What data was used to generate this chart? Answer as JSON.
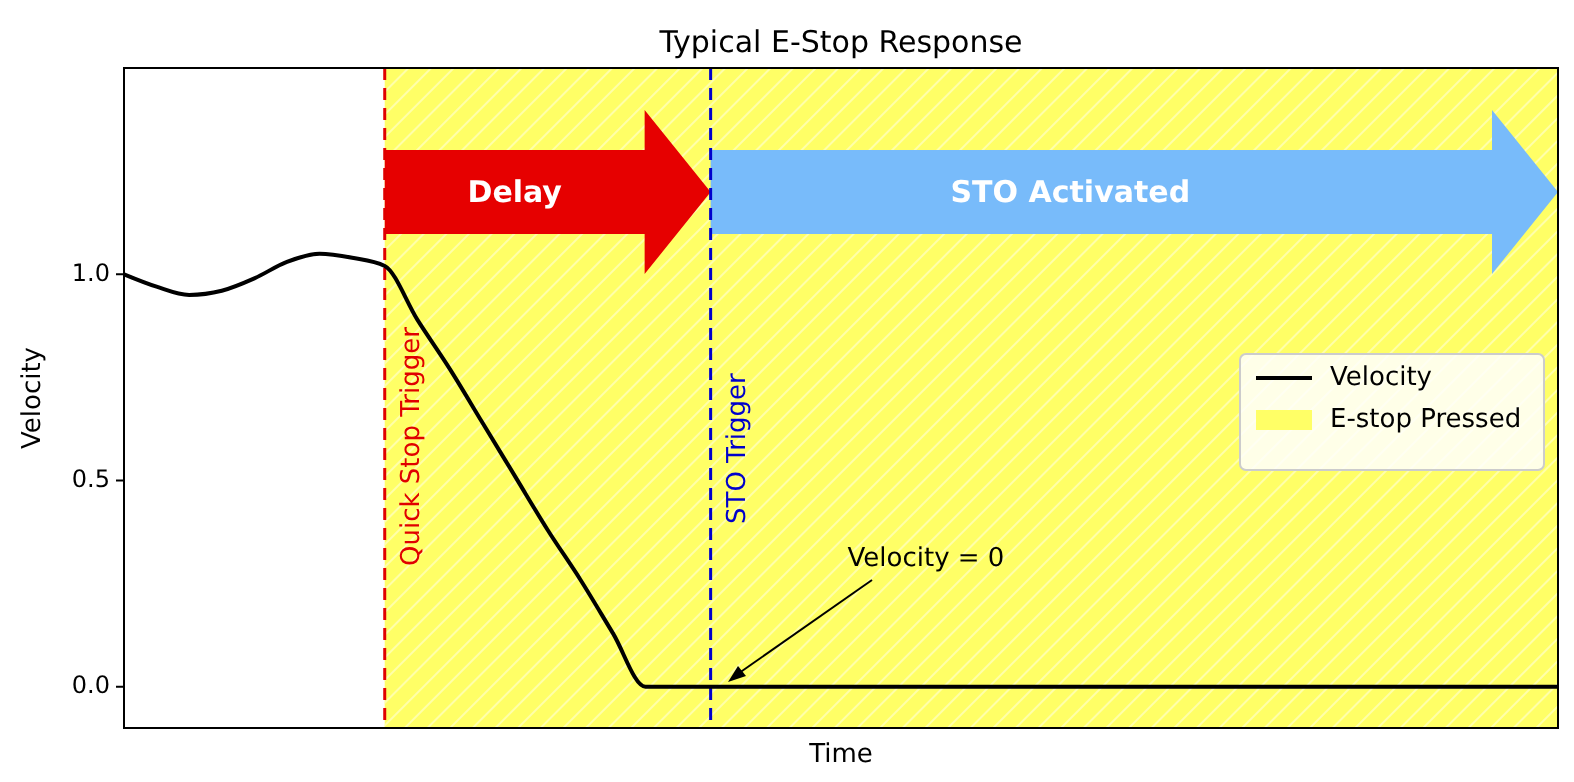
{
  "chart_data": {
    "type": "line",
    "title": "Typical E-Stop Response",
    "xlabel": "Time",
    "ylabel": "Velocity",
    "categories": [
      null,
      null,
      null,
      null,
      null,
      null,
      null,
      null,
      null,
      null,
      null,
      null,
      null,
      null,
      null,
      null,
      null,
      null,
      null,
      null,
      null,
      null,
      null,
      null,
      null,
      null,
      null,
      null,
      null,
      null,
      null,
      null,
      null,
      null,
      null,
      null,
      null,
      null,
      null,
      null,
      null,
      null,
      null,
      null,
      null
    ],
    "series": [
      {
        "name": "Velocity",
        "color": "#000000",
        "values": [
          1.0,
          0.97,
          0.95,
          0.96,
          0.99,
          1.03,
          1.05,
          1.04,
          1.02,
          0.89,
          0.77,
          0.64,
          0.51,
          0.38,
          0.26,
          0.13,
          0,
          0,
          0,
          0,
          0,
          0,
          0,
          0,
          0,
          0,
          0,
          0,
          0,
          0,
          0,
          0,
          0,
          0,
          0,
          0,
          0,
          0,
          0,
          0,
          0,
          0,
          0,
          0,
          0
        ]
      }
    ],
    "ylim": [
      -0.1,
      1.5
    ],
    "yticks": [
      {
        "value": 0,
        "label": "0.0"
      },
      {
        "value": 0.5,
        "label": "0.5"
      },
      {
        "value": 1,
        "label": "1.0"
      }
    ],
    "annotations": [
      "Delay",
      "STO Activated",
      "Velocity = 0",
      "Quick Stop Trigger",
      "STO Trigger",
      "E-stop Pressed"
    ],
    "legend": "right",
    "grid": false,
    "marker": "none",
    "line_style": "solid"
  }
}
